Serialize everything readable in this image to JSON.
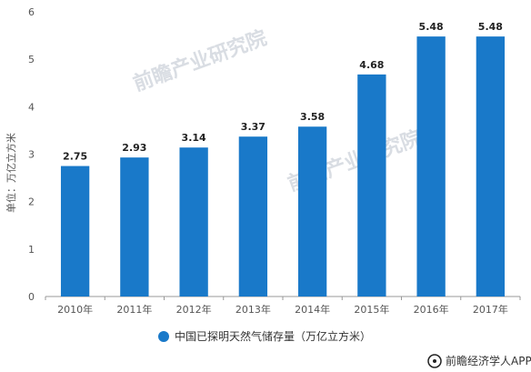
{
  "chart_data": {
    "type": "bar",
    "categories": [
      "2010年",
      "2011年",
      "2012年",
      "2013年",
      "2014年",
      "2015年",
      "2016年",
      "2017年"
    ],
    "values": [
      2.75,
      2.93,
      3.14,
      3.37,
      3.58,
      4.68,
      5.48,
      5.48
    ],
    "value_labels": [
      "2.75",
      "2.93",
      "3.14",
      "3.37",
      "3.58",
      "4.68",
      "5.48",
      "5.48"
    ],
    "series": [
      {
        "name": "中国已探明天然气储存量（万亿立方米）",
        "values": [
          2.75,
          2.93,
          3.14,
          3.37,
          3.58,
          4.68,
          5.48,
          5.48
        ]
      }
    ],
    "ylabel": "单位：万亿立方米",
    "ylim": [
      0,
      6
    ],
    "yticks": [
      0,
      1,
      2,
      3,
      4,
      5,
      6
    ],
    "grid": false,
    "legend_position": "bottom",
    "bar_color": "#1979c9"
  },
  "watermark": {
    "text": "前瞻产业研究院"
  },
  "footer": {
    "text": "前瞻经济学人APP"
  }
}
